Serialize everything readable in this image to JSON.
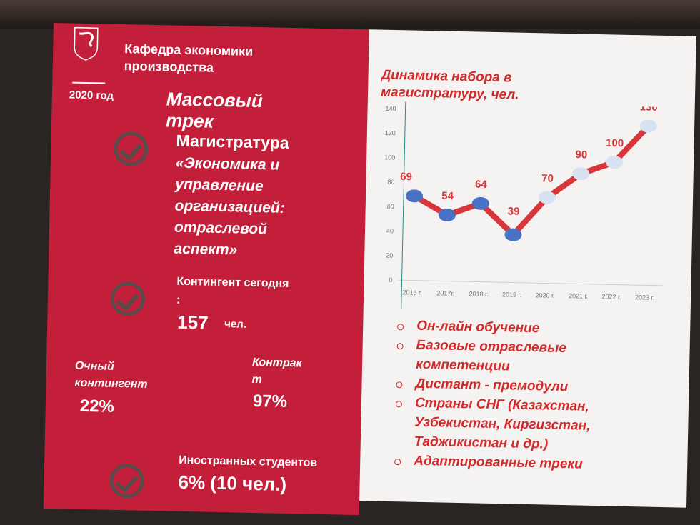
{
  "header": {
    "department": "Кафедра экономики\nпроизводства",
    "year": "2020 год",
    "track": "Массовый\nтрек"
  },
  "program": {
    "title": "Магистратура",
    "name": "«Экономика и\nуправление\nорганизацией:\nотраслевой\nаспект»"
  },
  "contingent": {
    "label": "Контингент сегодня\n:",
    "value": "157",
    "unit": "чел."
  },
  "fulltime": {
    "label": "Очный\nконтингент",
    "value": "22%"
  },
  "contract": {
    "label": "Контрак\nт",
    "value": "97%"
  },
  "foreign": {
    "label": "Иностранных студентов",
    "value": "6% (10 чел.)"
  },
  "bullets": [
    "Он-лайн обучение",
    "Базовые отраслевые\nкомпетенции",
    "Дистант - премодули",
    "Страны СНГ (Казахстан,\nУзбекистан, Киргизстан,\nТаджикистан и др.)",
    "Адаптированные треки"
  ],
  "chart_data": {
    "type": "line",
    "title": "Динамика набора в магистратуру, чел.",
    "categories": [
      "2016 г.",
      "2017г.",
      "2018 г.",
      "2019 г.",
      "2020 г.",
      "2021 г.",
      "2022 г.",
      "2023 г."
    ],
    "values": [
      69,
      54,
      64,
      39,
      70,
      90,
      100,
      130
    ],
    "ylim": [
      0,
      140
    ],
    "yticks": [
      0,
      20,
      40,
      60,
      80,
      100,
      120,
      140
    ],
    "colors": {
      "line": "#d8363a",
      "actual_marker": "#4a72c4",
      "forecast_marker": "#d6e2f0",
      "labels": "#d8363a"
    }
  },
  "colors": {
    "slide_red": "#c41f3a",
    "text_red": "#d22a2a"
  }
}
